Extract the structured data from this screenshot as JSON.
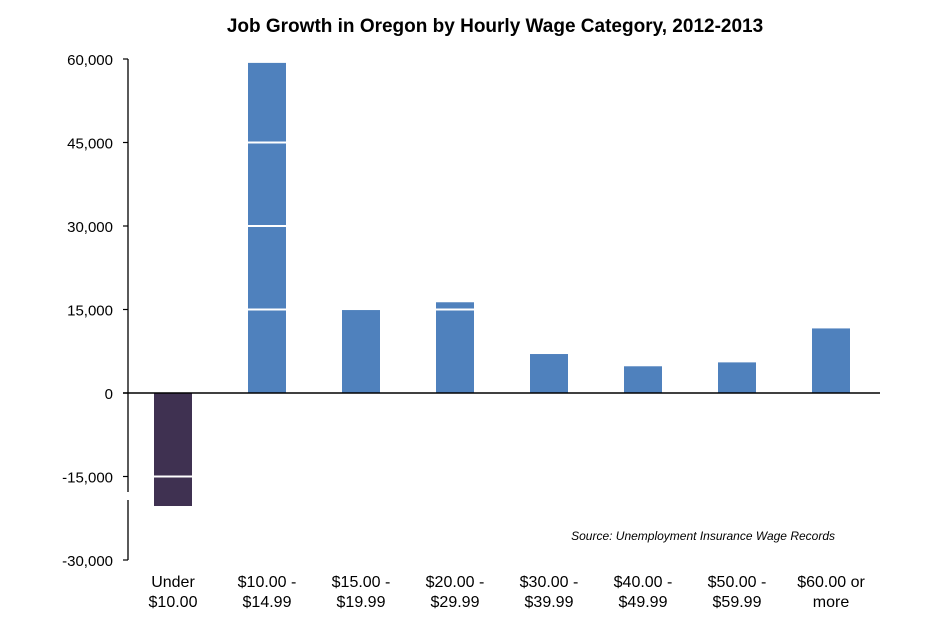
{
  "chart_data": {
    "type": "bar",
    "title": "Job Growth in Oregon by Hourly Wage Category, 2012-2013",
    "categories": [
      [
        "Under",
        "$10.00"
      ],
      [
        "$10.00 -",
        "$14.99"
      ],
      [
        "$15.00 -",
        "$19.99"
      ],
      [
        "$20.00 -",
        "$29.99"
      ],
      [
        "$30.00 -",
        "$39.99"
      ],
      [
        "$40.00 -",
        "$49.99"
      ],
      [
        "$50.00 -",
        "$59.99"
      ],
      [
        "$60.00 or",
        "more"
      ]
    ],
    "values": [
      -20300,
      59300,
      14900,
      16300,
      7000,
      4800,
      5500,
      11600
    ],
    "ylim": [
      -30000,
      60000
    ],
    "yticks": [
      60000,
      45000,
      30000,
      15000,
      0,
      -15000,
      -30000
    ],
    "ytick_labels": [
      "60,000",
      "45,000",
      "30,000",
      "15,000",
      "0",
      "-15,000",
      "-30,000"
    ],
    "xlabel": "",
    "ylabel": "",
    "grid": false,
    "source_note": "Source: Unemployment Insurance Wage Records",
    "colors": {
      "positive": "#4f81bd",
      "negative": "#3f3151",
      "axis": "#000000"
    }
  }
}
